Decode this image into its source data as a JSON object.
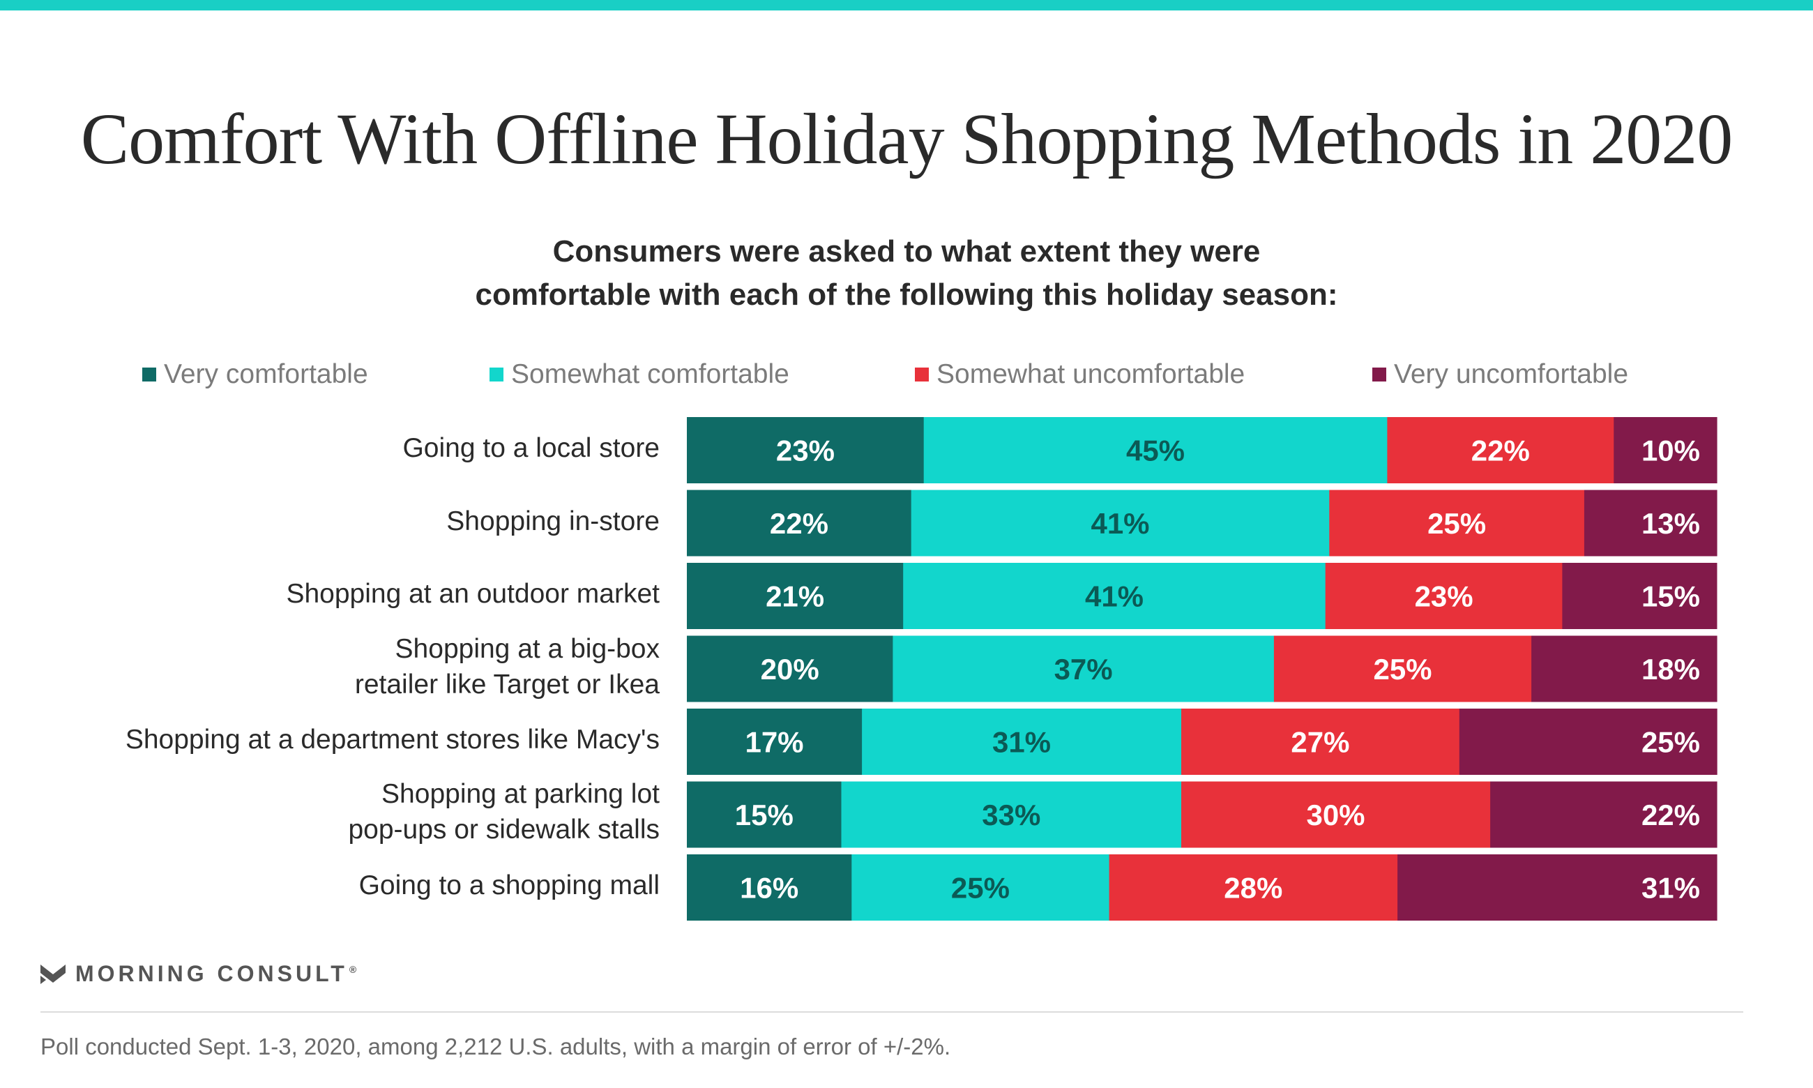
{
  "title": "Comfort With Offline Holiday Shopping Methods in 2020",
  "subtitle_line1": "Consumers were asked to what extent they were",
  "subtitle_line2": "comfortable with each of the following this holiday season:",
  "colors": {
    "top_rule": "#19cfc5",
    "very_comfortable": "#0f6b66",
    "somewhat_comfortable": "#12d6cc",
    "somewhat_uncomfortable": "#e8313a",
    "very_uncomfortable": "#821a4a"
  },
  "legend": [
    {
      "label": "Very comfortable",
      "color": "#0f6b66"
    },
    {
      "label": "Somewhat comfortable",
      "color": "#12d6cc"
    },
    {
      "label": "Somewhat uncomfortable",
      "color": "#e8313a"
    },
    {
      "label": "Very uncomfortable",
      "color": "#821a4a"
    }
  ],
  "chart_data": {
    "type": "bar",
    "orientation": "horizontal",
    "stacked": true,
    "normalized": true,
    "categories": [
      [
        "Going to a local store"
      ],
      [
        "Shopping in-store"
      ],
      [
        "Shopping at an outdoor market"
      ],
      [
        "Shopping at a big-box",
        "retailer like Target or Ikea"
      ],
      [
        "Shopping at a department stores like Macy's"
      ],
      [
        "Shopping at parking lot",
        "pop-ups or sidewalk stalls"
      ],
      [
        "Going to a shopping mall"
      ]
    ],
    "series": [
      {
        "name": "Very comfortable",
        "color": "#0f6b66",
        "label_color": "#ffffff",
        "values": [
          23,
          22,
          21,
          20,
          17,
          15,
          16
        ]
      },
      {
        "name": "Somewhat comfortable",
        "color": "#12d6cc",
        "label_color": "#0b5a55",
        "values": [
          45,
          41,
          41,
          37,
          31,
          33,
          25
        ]
      },
      {
        "name": "Somewhat uncomfortable",
        "color": "#e8313a",
        "label_color": "#ffffff",
        "values": [
          22,
          25,
          23,
          25,
          27,
          30,
          28
        ]
      },
      {
        "name": "Very uncomfortable",
        "color": "#821a4a",
        "label_color": "#ffffff",
        "values": [
          10,
          13,
          15,
          18,
          25,
          22,
          31
        ]
      }
    ],
    "value_suffix": "%",
    "legend_position": "top",
    "grid": false
  },
  "logo": {
    "text": "MORNING CONSULT",
    "mark": "®"
  },
  "footnote": "Poll conducted Sept. 1-3, 2020, among 2,212 U.S. adults, with a margin of error of +/-2%."
}
